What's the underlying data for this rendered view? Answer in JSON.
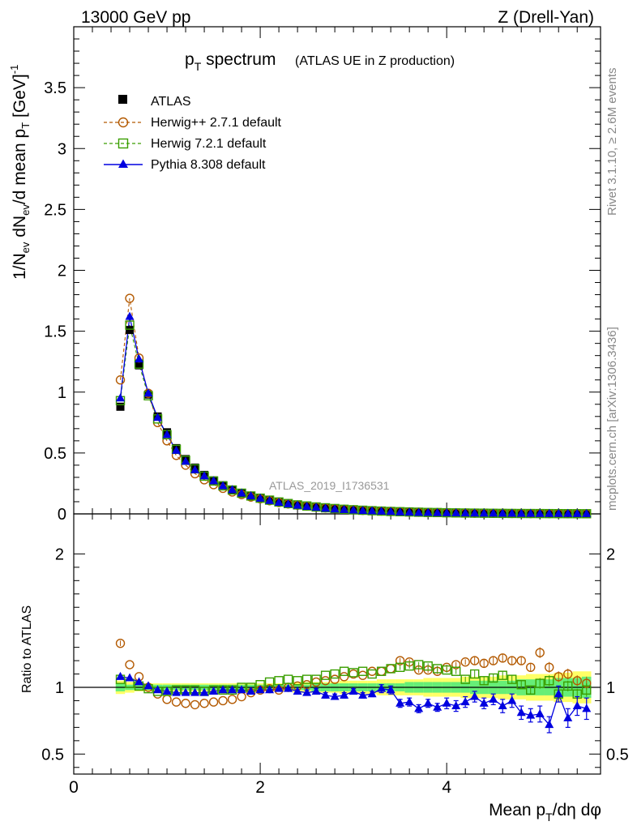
{
  "header": {
    "left": "13000 GeV pp",
    "right": "Z (Drell-Yan)"
  },
  "side_labels": {
    "rivet": "Rivet 3.1.10, ≥ 2.6M events",
    "mcplots": "mcplots.cern.ch [arXiv:1306.3436]"
  },
  "chart_data": {
    "type": "scatter",
    "title": "p_T spectrum (ATLAS UE in Z production)",
    "title_main": "p",
    "title_sub": "T",
    "title_word": " spectrum",
    "title_paren": "(ATLAS UE in Z production)",
    "analysis_label": "ATLAS_2019_I1736531",
    "xlabel": "Mean p_T/dη dφ",
    "ylabel": "1/N_ev dN_ev/d mean p_T [GeV]^-1",
    "ratio_ylabel": "Ratio to ATLAS",
    "xlim": [
      0,
      5.65
    ],
    "ylim_main": [
      0,
      4.0
    ],
    "ylim_ratio": [
      0.35,
      2.3
    ],
    "x_ticks": [
      "0",
      "2",
      "4"
    ],
    "y_ticks_main": [
      "0",
      "0.5",
      "1",
      "1.5",
      "2",
      "2.5",
      "3",
      "3.5"
    ],
    "y_ticks_ratio": [
      "0.5",
      "1",
      "2"
    ],
    "legend": [
      "ATLAS",
      "Herwig++ 2.7.1 default",
      "Herwig 7.2.1 default",
      "Pythia 8.308 default"
    ],
    "x": [
      0.5,
      0.6,
      0.7,
      0.8,
      0.9,
      1.0,
      1.1,
      1.2,
      1.3,
      1.4,
      1.5,
      1.6,
      1.7,
      1.8,
      1.9,
      2.0,
      2.1,
      2.2,
      2.3,
      2.4,
      2.5,
      2.6,
      2.7,
      2.8,
      2.9,
      3.0,
      3.1,
      3.2,
      3.3,
      3.4,
      3.5,
      3.6,
      3.7,
      3.8,
      3.9,
      4.0,
      4.1,
      4.2,
      4.3,
      4.4,
      4.5,
      4.6,
      4.7,
      4.8,
      4.9,
      5.0,
      5.1,
      5.2,
      5.3,
      5.4,
      5.5
    ],
    "series": [
      {
        "name": "ATLAS",
        "color": "#000000",
        "values": [
          0.88,
          1.51,
          1.22,
          0.98,
          0.8,
          0.67,
          0.54,
          0.45,
          0.38,
          0.32,
          0.275,
          0.235,
          0.2,
          0.172,
          0.148,
          0.128,
          0.11,
          0.095,
          0.082,
          0.071,
          0.062,
          0.054,
          0.047,
          0.041,
          0.036,
          0.031,
          0.027,
          0.024,
          0.021,
          0.018,
          0.016,
          0.014,
          0.012,
          0.011,
          0.0095,
          0.0083,
          0.0073,
          0.0064,
          0.0056,
          0.0049,
          0.0043,
          0.0038,
          0.0033,
          0.0029,
          0.0026,
          0.0023,
          0.002,
          0.0018,
          0.0016,
          0.0014,
          0.0012
        ]
      },
      {
        "name": "Herwig++ 2.7.1 default",
        "color": "#b35900",
        "values": [
          1.1,
          1.77,
          1.28,
          0.99,
          0.75,
          0.6,
          0.48,
          0.4,
          0.33,
          0.28,
          0.24,
          0.21,
          0.18,
          0.158,
          0.138,
          0.124,
          0.108,
          0.093,
          0.082,
          0.072,
          0.064,
          0.056,
          0.049,
          0.043,
          0.038,
          0.034,
          0.029,
          0.026,
          0.023,
          0.02,
          0.018,
          0.016,
          0.014,
          0.012,
          0.011,
          0.0092,
          0.0081,
          0.0071,
          0.0063,
          0.0055,
          0.0049,
          0.0043,
          0.0038,
          0.0033,
          0.003,
          0.0027,
          0.0023,
          0.002,
          0.0018,
          0.0016,
          0.0014
        ]
      },
      {
        "name": "Herwig 7.2.1 default",
        "color": "#3a9e00",
        "values": [
          0.93,
          1.55,
          1.23,
          0.97,
          0.78,
          0.65,
          0.53,
          0.44,
          0.37,
          0.31,
          0.27,
          0.23,
          0.196,
          0.17,
          0.147,
          0.129,
          0.113,
          0.098,
          0.085,
          0.074,
          0.065,
          0.057,
          0.05,
          0.044,
          0.038,
          0.034,
          0.03,
          0.026,
          0.023,
          0.02,
          0.018,
          0.016,
          0.014,
          0.012,
          0.011,
          0.0093,
          0.0082,
          0.0072,
          0.0063,
          0.0056,
          0.0049,
          0.0043,
          0.0038,
          0.0033,
          0.003,
          0.0027,
          0.0024,
          0.0021,
          0.0018,
          0.0016,
          0.0014
        ]
      },
      {
        "name": "Pythia 8.308 default",
        "color": "#0000e0",
        "values": [
          0.95,
          1.62,
          1.27,
          0.99,
          0.79,
          0.65,
          0.52,
          0.43,
          0.36,
          0.31,
          0.27,
          0.23,
          0.197,
          0.17,
          0.147,
          0.127,
          0.108,
          0.093,
          0.08,
          0.069,
          0.06,
          0.052,
          0.044,
          0.038,
          0.034,
          0.03,
          0.026,
          0.023,
          0.021,
          0.018,
          0.014,
          0.0125,
          0.0102,
          0.0096,
          0.0081,
          0.0073,
          0.0063,
          0.0057,
          0.0052,
          0.0043,
          0.0039,
          0.0033,
          0.003,
          0.0024,
          0.0021,
          0.0019,
          0.0015,
          0.0017,
          0.0013,
          0.0012,
          0.001
        ]
      }
    ],
    "ratio": [
      {
        "name": "Herwig++ 2.7.1 default",
        "values": [
          1.33,
          1.17,
          1.08,
          1.0,
          0.95,
          0.91,
          0.89,
          0.88,
          0.87,
          0.88,
          0.89,
          0.9,
          0.91,
          0.93,
          0.96,
          0.98,
          0.99,
          0.98,
          1.0,
          1.01,
          1.02,
          1.04,
          1.05,
          1.06,
          1.08,
          1.1,
          1.09,
          1.12,
          1.12,
          1.14,
          1.2,
          1.19,
          1.13,
          1.13,
          1.12,
          1.15,
          1.17,
          1.19,
          1.2,
          1.18,
          1.2,
          1.22,
          1.2,
          1.2,
          1.15,
          1.26,
          1.15,
          1.08,
          1.1,
          1.05,
          1.03
        ],
        "errors": [
          0.02,
          0.01,
          0.01,
          0.01,
          0.01,
          0.01,
          0.01,
          0.01,
          0.01,
          0.01,
          0.01,
          0.01,
          0.01,
          0.01,
          0.01,
          0.01,
          0.01,
          0.01,
          0.01,
          0.01,
          0.01,
          0.01,
          0.01,
          0.01,
          0.01,
          0.01,
          0.01,
          0.01,
          0.01,
          0.01,
          0.02,
          0.02,
          0.02,
          0.02,
          0.02,
          0.02,
          0.02,
          0.02,
          0.03,
          0.03,
          0.03,
          0.03,
          0.03,
          0.03,
          0.03,
          0.04,
          0.04,
          0.04,
          0.04,
          0.04,
          0.05
        ]
      },
      {
        "name": "Herwig 7.2.1 default",
        "values": [
          1.06,
          1.03,
          1.01,
          0.99,
          0.97,
          0.97,
          0.98,
          0.98,
          0.98,
          0.97,
          0.98,
          0.98,
          0.98,
          1.0,
          1.0,
          1.02,
          1.04,
          1.05,
          1.06,
          1.05,
          1.06,
          1.06,
          1.09,
          1.1,
          1.12,
          1.11,
          1.12,
          1.1,
          1.12,
          1.14,
          1.15,
          1.16,
          1.17,
          1.16,
          1.14,
          1.13,
          1.12,
          1.06,
          1.1,
          1.05,
          1.07,
          1.09,
          1.06,
          1.02,
          0.98,
          1.03,
          1.05,
          0.95,
          1.01,
          0.95,
          0.98
        ],
        "errors": [
          0.01,
          0.01,
          0.01,
          0.01,
          0.01,
          0.01,
          0.01,
          0.01,
          0.01,
          0.01,
          0.01,
          0.01,
          0.01,
          0.01,
          0.01,
          0.01,
          0.01,
          0.01,
          0.01,
          0.01,
          0.01,
          0.01,
          0.01,
          0.01,
          0.01,
          0.01,
          0.01,
          0.01,
          0.01,
          0.01,
          0.02,
          0.02,
          0.02,
          0.02,
          0.02,
          0.02,
          0.02,
          0.02,
          0.03,
          0.03,
          0.03,
          0.03,
          0.03,
          0.03,
          0.03,
          0.04,
          0.04,
          0.04,
          0.04,
          0.04,
          0.05
        ]
      },
      {
        "name": "Pythia 8.308 default",
        "values": [
          1.08,
          1.07,
          1.04,
          1.01,
          0.98,
          0.97,
          0.96,
          0.96,
          0.96,
          0.96,
          0.97,
          0.98,
          0.98,
          0.98,
          0.97,
          0.98,
          0.98,
          0.99,
          0.99,
          0.97,
          0.96,
          0.97,
          0.94,
          0.93,
          0.94,
          0.97,
          0.94,
          0.95,
          0.99,
          0.98,
          0.88,
          0.89,
          0.84,
          0.88,
          0.85,
          0.88,
          0.86,
          0.89,
          0.93,
          0.88,
          0.91,
          0.86,
          0.9,
          0.81,
          0.79,
          0.8,
          0.72,
          0.95,
          0.77,
          0.86,
          0.84
        ],
        "errors": [
          0.01,
          0.01,
          0.01,
          0.01,
          0.01,
          0.01,
          0.01,
          0.01,
          0.01,
          0.01,
          0.01,
          0.01,
          0.01,
          0.01,
          0.01,
          0.01,
          0.01,
          0.01,
          0.01,
          0.01,
          0.02,
          0.02,
          0.02,
          0.02,
          0.02,
          0.02,
          0.02,
          0.02,
          0.03,
          0.03,
          0.03,
          0.03,
          0.03,
          0.03,
          0.03,
          0.04,
          0.04,
          0.04,
          0.04,
          0.04,
          0.04,
          0.05,
          0.05,
          0.05,
          0.05,
          0.06,
          0.06,
          0.06,
          0.07,
          0.07,
          0.08
        ]
      }
    ],
    "uncertainty_band": {
      "stat_color": "#66ee77",
      "total_color": "#ffff66",
      "green": [
        0.03,
        0.02,
        0.02,
        0.02,
        0.02,
        0.02,
        0.02,
        0.02,
        0.02,
        0.02,
        0.02,
        0.02,
        0.02,
        0.02,
        0.02,
        0.02,
        0.02,
        0.02,
        0.02,
        0.02,
        0.02,
        0.03,
        0.03,
        0.03,
        0.03,
        0.03,
        0.03,
        0.03,
        0.03,
        0.03,
        0.03,
        0.04,
        0.04,
        0.04,
        0.04,
        0.04,
        0.04,
        0.04,
        0.05,
        0.05,
        0.05,
        0.05,
        0.05,
        0.06,
        0.06,
        0.06,
        0.06,
        0.07,
        0.07,
        0.07,
        0.08
      ],
      "yellow": [
        0.05,
        0.04,
        0.03,
        0.03,
        0.03,
        0.03,
        0.03,
        0.03,
        0.03,
        0.03,
        0.03,
        0.03,
        0.03,
        0.03,
        0.03,
        0.03,
        0.03,
        0.03,
        0.03,
        0.04,
        0.04,
        0.04,
        0.04,
        0.04,
        0.05,
        0.05,
        0.05,
        0.05,
        0.06,
        0.06,
        0.06,
        0.06,
        0.06,
        0.07,
        0.07,
        0.07,
        0.07,
        0.08,
        0.08,
        0.08,
        0.08,
        0.09,
        0.09,
        0.09,
        0.1,
        0.1,
        0.1,
        0.11,
        0.11,
        0.12,
        0.12
      ]
    }
  }
}
